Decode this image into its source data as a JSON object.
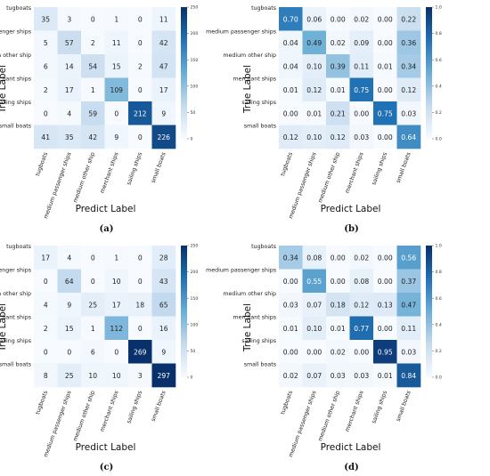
{
  "chart_data": [
    {
      "type": "heatmap",
      "caption": "(a)",
      "xlabel": "Predict Label",
      "ylabel": "True Label",
      "row_labels": [
        "tugboats",
        "medium passenger ships",
        "medium other ship",
        "merchant ships",
        "sailing ships",
        "small boats"
      ],
      "col_labels": [
        "tugboats",
        "medium passenger ships",
        "medium other ship",
        "merchant ships",
        "sailing ships",
        "small boats"
      ],
      "values": [
        [
          "35",
          "3",
          "0",
          "1",
          "0",
          "11"
        ],
        [
          "5",
          "57",
          "2",
          "11",
          "0",
          "42"
        ],
        [
          "6",
          "14",
          "54",
          "15",
          "2",
          "47"
        ],
        [
          "2",
          "17",
          "1",
          "109",
          "0",
          "17"
        ],
        [
          "0",
          "4",
          "59",
          "0",
          "212",
          "9"
        ],
        [
          "41",
          "35",
          "42",
          "9",
          "0",
          "226"
        ]
      ],
      "colorbar": {
        "min": 0,
        "max": 250,
        "ticks": [
          "0",
          "50",
          "100",
          "150",
          "200",
          "250"
        ]
      }
    },
    {
      "type": "heatmap",
      "caption": "(b)",
      "xlabel": "Predict Label",
      "ylabel": "True Label",
      "row_labels": [
        "tugboats",
        "medium passenger ships",
        "medium other ship",
        "merchant ships",
        "sailing ships",
        "small boats"
      ],
      "col_labels": [
        "tugboats",
        "medium passenger ships",
        "medium other ship",
        "merchant ships",
        "sailing ships",
        "small boats"
      ],
      "values": [
        [
          "0.70",
          "0.06",
          "0.00",
          "0.02",
          "0.00",
          "0.22"
        ],
        [
          "0.04",
          "0.49",
          "0.02",
          "0.09",
          "0.00",
          "0.36"
        ],
        [
          "0.04",
          "0.10",
          "0.39",
          "0.11",
          "0.01",
          "0.34"
        ],
        [
          "0.01",
          "0.12",
          "0.01",
          "0.75",
          "0.00",
          "0.12"
        ],
        [
          "0.00",
          "0.01",
          "0.21",
          "0.00",
          "0.75",
          "0.03"
        ],
        [
          "0.12",
          "0.10",
          "0.12",
          "0.03",
          "0.00",
          "0.64"
        ]
      ],
      "colorbar": {
        "min": 0,
        "max": 1,
        "ticks": [
          "0.0",
          "0.2",
          "0.4",
          "0.6",
          "0.8",
          "1.0"
        ]
      }
    },
    {
      "type": "heatmap",
      "caption": "(c)",
      "xlabel": "Predict Label",
      "ylabel": "True Label",
      "row_labels": [
        "tugboats",
        "medium passenger ships",
        "medium other ship",
        "merchant ships",
        "sailing ships",
        "small boats"
      ],
      "col_labels": [
        "tugboats",
        "medium passenger ships",
        "medium other ship",
        "merchant ships",
        "sailing ships",
        "small boats"
      ],
      "values": [
        [
          "17",
          "4",
          "0",
          "1",
          "0",
          "28"
        ],
        [
          "0",
          "64",
          "0",
          "10",
          "0",
          "43"
        ],
        [
          "4",
          "9",
          "25",
          "17",
          "18",
          "65"
        ],
        [
          "2",
          "15",
          "1",
          "112",
          "0",
          "16"
        ],
        [
          "0",
          "0",
          "6",
          "0",
          "269",
          "9"
        ],
        [
          "8",
          "25",
          "10",
          "10",
          "3",
          "297"
        ]
      ],
      "colorbar": {
        "min": 0,
        "max": 250,
        "ticks": [
          "0",
          "50",
          "100",
          "150",
          "200",
          "250"
        ]
      }
    },
    {
      "type": "heatmap",
      "caption": "(d)",
      "xlabel": "Predict Label",
      "ylabel": "True Label",
      "row_labels": [
        "tugboats",
        "medium passenger ships",
        "medium other ship",
        "merchant ships",
        "sailing ships",
        "small boats"
      ],
      "col_labels": [
        "tugboats",
        "medium passenger ships",
        "medium other ship",
        "merchant ships",
        "sailing ships",
        "small boats"
      ],
      "values": [
        [
          "0.34",
          "0.08",
          "0.00",
          "0.02",
          "0.00",
          "0.56"
        ],
        [
          "0.00",
          "0.55",
          "0.00",
          "0.08",
          "0.00",
          "0.37"
        ],
        [
          "0.03",
          "0.07",
          "0.18",
          "0.12",
          "0.13",
          "0.47"
        ],
        [
          "0.01",
          "0.10",
          "0.01",
          "0.77",
          "0.00",
          "0.11"
        ],
        [
          "0.00",
          "0.00",
          "0.02",
          "0.00",
          "0.95",
          "0.03"
        ],
        [
          "0.02",
          "0.07",
          "0.03",
          "0.03",
          "0.01",
          "0.84"
        ]
      ],
      "colorbar": {
        "min": 0,
        "max": 1,
        "ticks": [
          "0.0",
          "0.2",
          "0.4",
          "0.6",
          "0.8",
          "1.0"
        ]
      }
    }
  ],
  "colors": {
    "cmap_low": "#f7fbff",
    "cmap_mid1": "#c6dbef",
    "cmap_mid2": "#6baed6",
    "cmap_mid3": "#2171b5",
    "cmap_high": "#08306b",
    "text_dark": "#222222",
    "text_light": "#ffffff"
  }
}
